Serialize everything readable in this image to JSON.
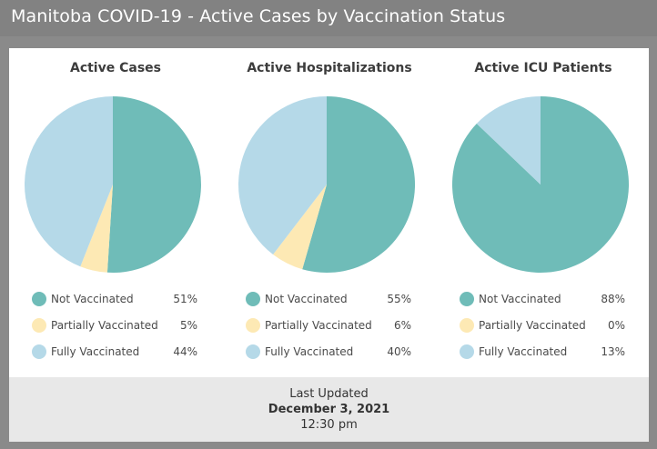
{
  "header": {
    "title": "Manitoba COVID-19 - Active Cases by Vaccination Status"
  },
  "colors": {
    "not_vaccinated": "#6fbcb8",
    "partially_vaccinated": "#fde9b4",
    "fully_vaccinated": "#b5d9e8"
  },
  "chart_data": [
    {
      "type": "pie",
      "title": "Active Cases",
      "slices": [
        {
          "name": "Not Vaccinated",
          "value": 51,
          "label": "51%",
          "color_key": "not_vaccinated"
        },
        {
          "name": "Partially Vaccinated",
          "value": 5,
          "label": "5%",
          "color_key": "partially_vaccinated"
        },
        {
          "name": "Fully Vaccinated",
          "value": 44,
          "label": "44%",
          "color_key": "fully_vaccinated"
        }
      ],
      "legend_position": "bottom"
    },
    {
      "type": "pie",
      "title": "Active Hospitalizations",
      "slices": [
        {
          "name": "Not Vaccinated",
          "value": 55,
          "label": "55%",
          "color_key": "not_vaccinated"
        },
        {
          "name": "Partially Vaccinated",
          "value": 6,
          "label": "6%",
          "color_key": "partially_vaccinated"
        },
        {
          "name": "Fully Vaccinated",
          "value": 40,
          "label": "40%",
          "color_key": "fully_vaccinated"
        }
      ],
      "legend_position": "bottom"
    },
    {
      "type": "pie",
      "title": "Active ICU Patients",
      "slices": [
        {
          "name": "Not Vaccinated",
          "value": 88,
          "label": "88%",
          "color_key": "not_vaccinated"
        },
        {
          "name": "Partially Vaccinated",
          "value": 0,
          "label": "0%",
          "color_key": "partially_vaccinated"
        },
        {
          "name": "Fully Vaccinated",
          "value": 13,
          "label": "13%",
          "color_key": "fully_vaccinated"
        }
      ],
      "legend_position": "bottom"
    }
  ],
  "footer": {
    "label": "Last Updated",
    "date": "December 3, 2021",
    "time": "12:30 pm"
  }
}
